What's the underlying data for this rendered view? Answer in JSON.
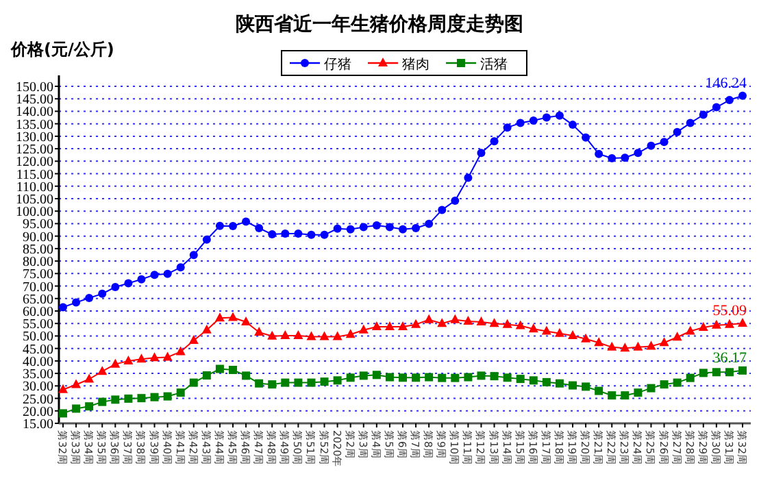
{
  "chart_data": {
    "type": "line",
    "title": "陕西省近一年生猪价格周度走势图",
    "ylabel": "价格(元/公斤)",
    "categories": [
      "第32周",
      "第33周",
      "第34周",
      "第35周",
      "第36周",
      "第37周",
      "第38周",
      "第39周",
      "第40周",
      "第41周",
      "第42周",
      "第43周",
      "第44周",
      "第45周",
      "第46周",
      "第47周",
      "第48周",
      "第49周",
      "第50周",
      "第51周",
      "第52周",
      "2020年",
      "第2周",
      "第3周",
      "第4周",
      "第5周",
      "第6周",
      "第7周",
      "第8周",
      "第9周",
      "第10周",
      "第11周",
      "第12周",
      "第13周",
      "第14周",
      "第15周",
      "第16周",
      "第17周",
      "第18周",
      "第19周",
      "第20周",
      "第21周",
      "第22周",
      "第23周",
      "第24周",
      "第25周",
      "第26周",
      "第27周",
      "第28周",
      "第29周",
      "第30周",
      "第31周",
      "第32周"
    ],
    "series": [
      {
        "name": "仔猪",
        "color": "#0000ff",
        "marker": "circle",
        "values": [
          61.5,
          63.4,
          65.2,
          66.9,
          69.6,
          71.1,
          72.7,
          74.5,
          74.9,
          77.5,
          82.4,
          88.6,
          94.1,
          94.0,
          95.8,
          93.2,
          90.7,
          91.0,
          91.0,
          90.5,
          90.5,
          93.0,
          92.7,
          93.6,
          94.3,
          93.6,
          92.7,
          93.2,
          94.9,
          100.5,
          104.2,
          113.4,
          123.3,
          128.0,
          133.5,
          135.3,
          136.3,
          137.5,
          138.3,
          134.6,
          129.5,
          122.9,
          121.2,
          121.4,
          123.3,
          126.2,
          127.7,
          131.7,
          135.3,
          138.6,
          141.6,
          144.5,
          146.24
        ],
        "value_labels": [
          null,
          null,
          null,
          null,
          null,
          null,
          null,
          null,
          null,
          null,
          null,
          null,
          null,
          null,
          null,
          null,
          null,
          null,
          null,
          null,
          null,
          null,
          null,
          null,
          null,
          null,
          null,
          null,
          null,
          null,
          null,
          null,
          null,
          null,
          null,
          null,
          null,
          null,
          null,
          null,
          null,
          null,
          null,
          null,
          null,
          null,
          null,
          null,
          null,
          null,
          null,
          null,
          "146.24"
        ]
      },
      {
        "name": "猪肉",
        "color": "#ff0000",
        "marker": "triangle",
        "values": [
          28.5,
          30.5,
          32.7,
          35.8,
          38.7,
          40.0,
          40.7,
          41.3,
          41.5,
          43.7,
          48.2,
          52.4,
          57.2,
          57.4,
          55.6,
          51.5,
          49.9,
          50.1,
          50.1,
          49.7,
          49.7,
          49.7,
          50.6,
          52.4,
          53.7,
          53.7,
          53.7,
          54.6,
          56.5,
          55.0,
          56.5,
          55.9,
          55.6,
          55.0,
          54.6,
          54.1,
          52.8,
          51.9,
          51.0,
          50.1,
          48.8,
          47.3,
          45.5,
          45.1,
          45.5,
          45.9,
          47.3,
          49.5,
          51.9,
          53.4,
          54.3,
          54.6,
          55.09
        ],
        "value_labels": [
          null,
          null,
          null,
          null,
          null,
          null,
          null,
          null,
          null,
          null,
          null,
          null,
          null,
          null,
          null,
          null,
          null,
          null,
          null,
          null,
          null,
          null,
          null,
          null,
          null,
          null,
          null,
          null,
          null,
          null,
          null,
          null,
          null,
          null,
          null,
          null,
          null,
          null,
          null,
          null,
          null,
          null,
          null,
          null,
          null,
          null,
          null,
          null,
          null,
          null,
          null,
          null,
          "55.09"
        ]
      },
      {
        "name": "活猪",
        "color": "#008000",
        "marker": "square",
        "values": [
          19.0,
          20.9,
          21.8,
          23.6,
          24.5,
          24.9,
          25.1,
          25.5,
          25.8,
          27.3,
          31.3,
          34.2,
          36.8,
          36.4,
          34.1,
          31.0,
          30.6,
          31.3,
          31.3,
          31.3,
          31.7,
          32.2,
          33.3,
          34.1,
          34.4,
          33.5,
          33.3,
          33.3,
          33.5,
          33.2,
          33.2,
          33.5,
          34.1,
          33.9,
          33.3,
          32.8,
          32.2,
          31.5,
          31.0,
          30.2,
          29.7,
          28.0,
          26.2,
          26.2,
          27.3,
          29.1,
          30.6,
          31.3,
          33.2,
          35.2,
          35.5,
          35.5,
          36.17
        ],
        "value_labels": [
          null,
          null,
          null,
          null,
          null,
          null,
          null,
          null,
          null,
          null,
          null,
          null,
          null,
          null,
          null,
          null,
          null,
          null,
          null,
          null,
          null,
          null,
          null,
          null,
          null,
          null,
          null,
          null,
          null,
          null,
          null,
          null,
          null,
          null,
          null,
          null,
          null,
          null,
          null,
          null,
          null,
          null,
          null,
          null,
          null,
          null,
          null,
          null,
          null,
          null,
          null,
          null,
          "36.17"
        ]
      }
    ],
    "ylim": [
      15,
      150
    ],
    "yticks": [
      {
        "value": 15,
        "label": "15.00"
      },
      {
        "value": 20,
        "label": "20.00"
      },
      {
        "value": 25,
        "label": "25.00"
      },
      {
        "value": 30,
        "label": "30.00"
      },
      {
        "value": 35,
        "label": "35.00"
      },
      {
        "value": 40,
        "label": "40.00"
      },
      {
        "value": 45,
        "label": "45.00"
      },
      {
        "value": 50,
        "label": "50.00"
      },
      {
        "value": 55,
        "label": "55.00"
      },
      {
        "value": 60,
        "label": "60.00"
      },
      {
        "value": 65,
        "label": "65.00"
      },
      {
        "value": 70,
        "label": "70.00"
      },
      {
        "value": 75,
        "label": "75.00"
      },
      {
        "value": 80,
        "label": "80.00"
      },
      {
        "value": 85,
        "label": "85.00"
      },
      {
        "value": 90,
        "label": "90.00"
      },
      {
        "value": 95,
        "label": "95.00"
      },
      {
        "value": 100,
        "label": "100.00"
      },
      {
        "value": 105,
        "label": "105.00"
      },
      {
        "value": 110,
        "label": "110.00"
      },
      {
        "value": 115,
        "label": "115.00"
      },
      {
        "value": 120,
        "label": "120.00"
      },
      {
        "value": 125,
        "label": "125.00"
      },
      {
        "value": 130,
        "label": "130.00"
      },
      {
        "value": 135,
        "label": "135.00"
      },
      {
        "value": 140,
        "label": "140.00"
      },
      {
        "value": 145,
        "label": "145.00"
      },
      {
        "value": 150,
        "label": "150.00"
      }
    ],
    "grid": "y",
    "legend": "top",
    "line_style": "solid"
  }
}
